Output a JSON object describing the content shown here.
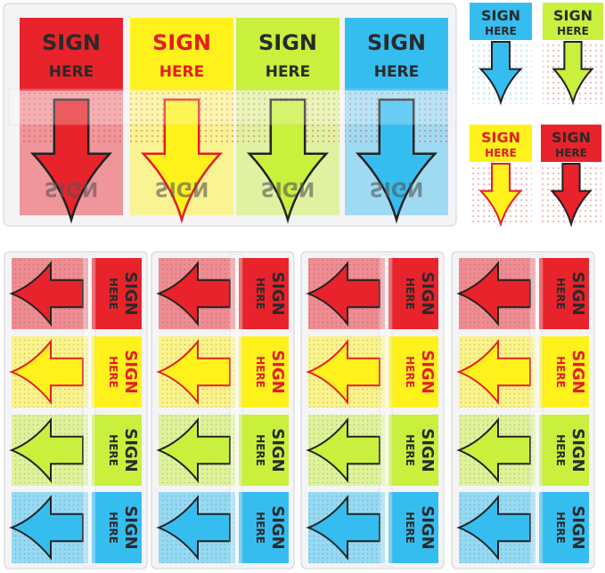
{
  "label": {
    "line1": "SIGN",
    "line2": "HERE"
  },
  "colors": {
    "red": "#e8232b",
    "yellow": "#fff21c",
    "green": "#c8f03c",
    "blue": "#35bdf0",
    "text_dark": "#2a2a2a",
    "text_red": "#e31e24"
  },
  "dispenser_top": {
    "flags": [
      "red",
      "yellow",
      "green",
      "blue"
    ]
  },
  "single_flags": [
    "blue",
    "green",
    "yellow",
    "red"
  ],
  "dispensers_bottom": {
    "count": 4,
    "flags": [
      "red",
      "yellow",
      "green",
      "blue"
    ]
  }
}
